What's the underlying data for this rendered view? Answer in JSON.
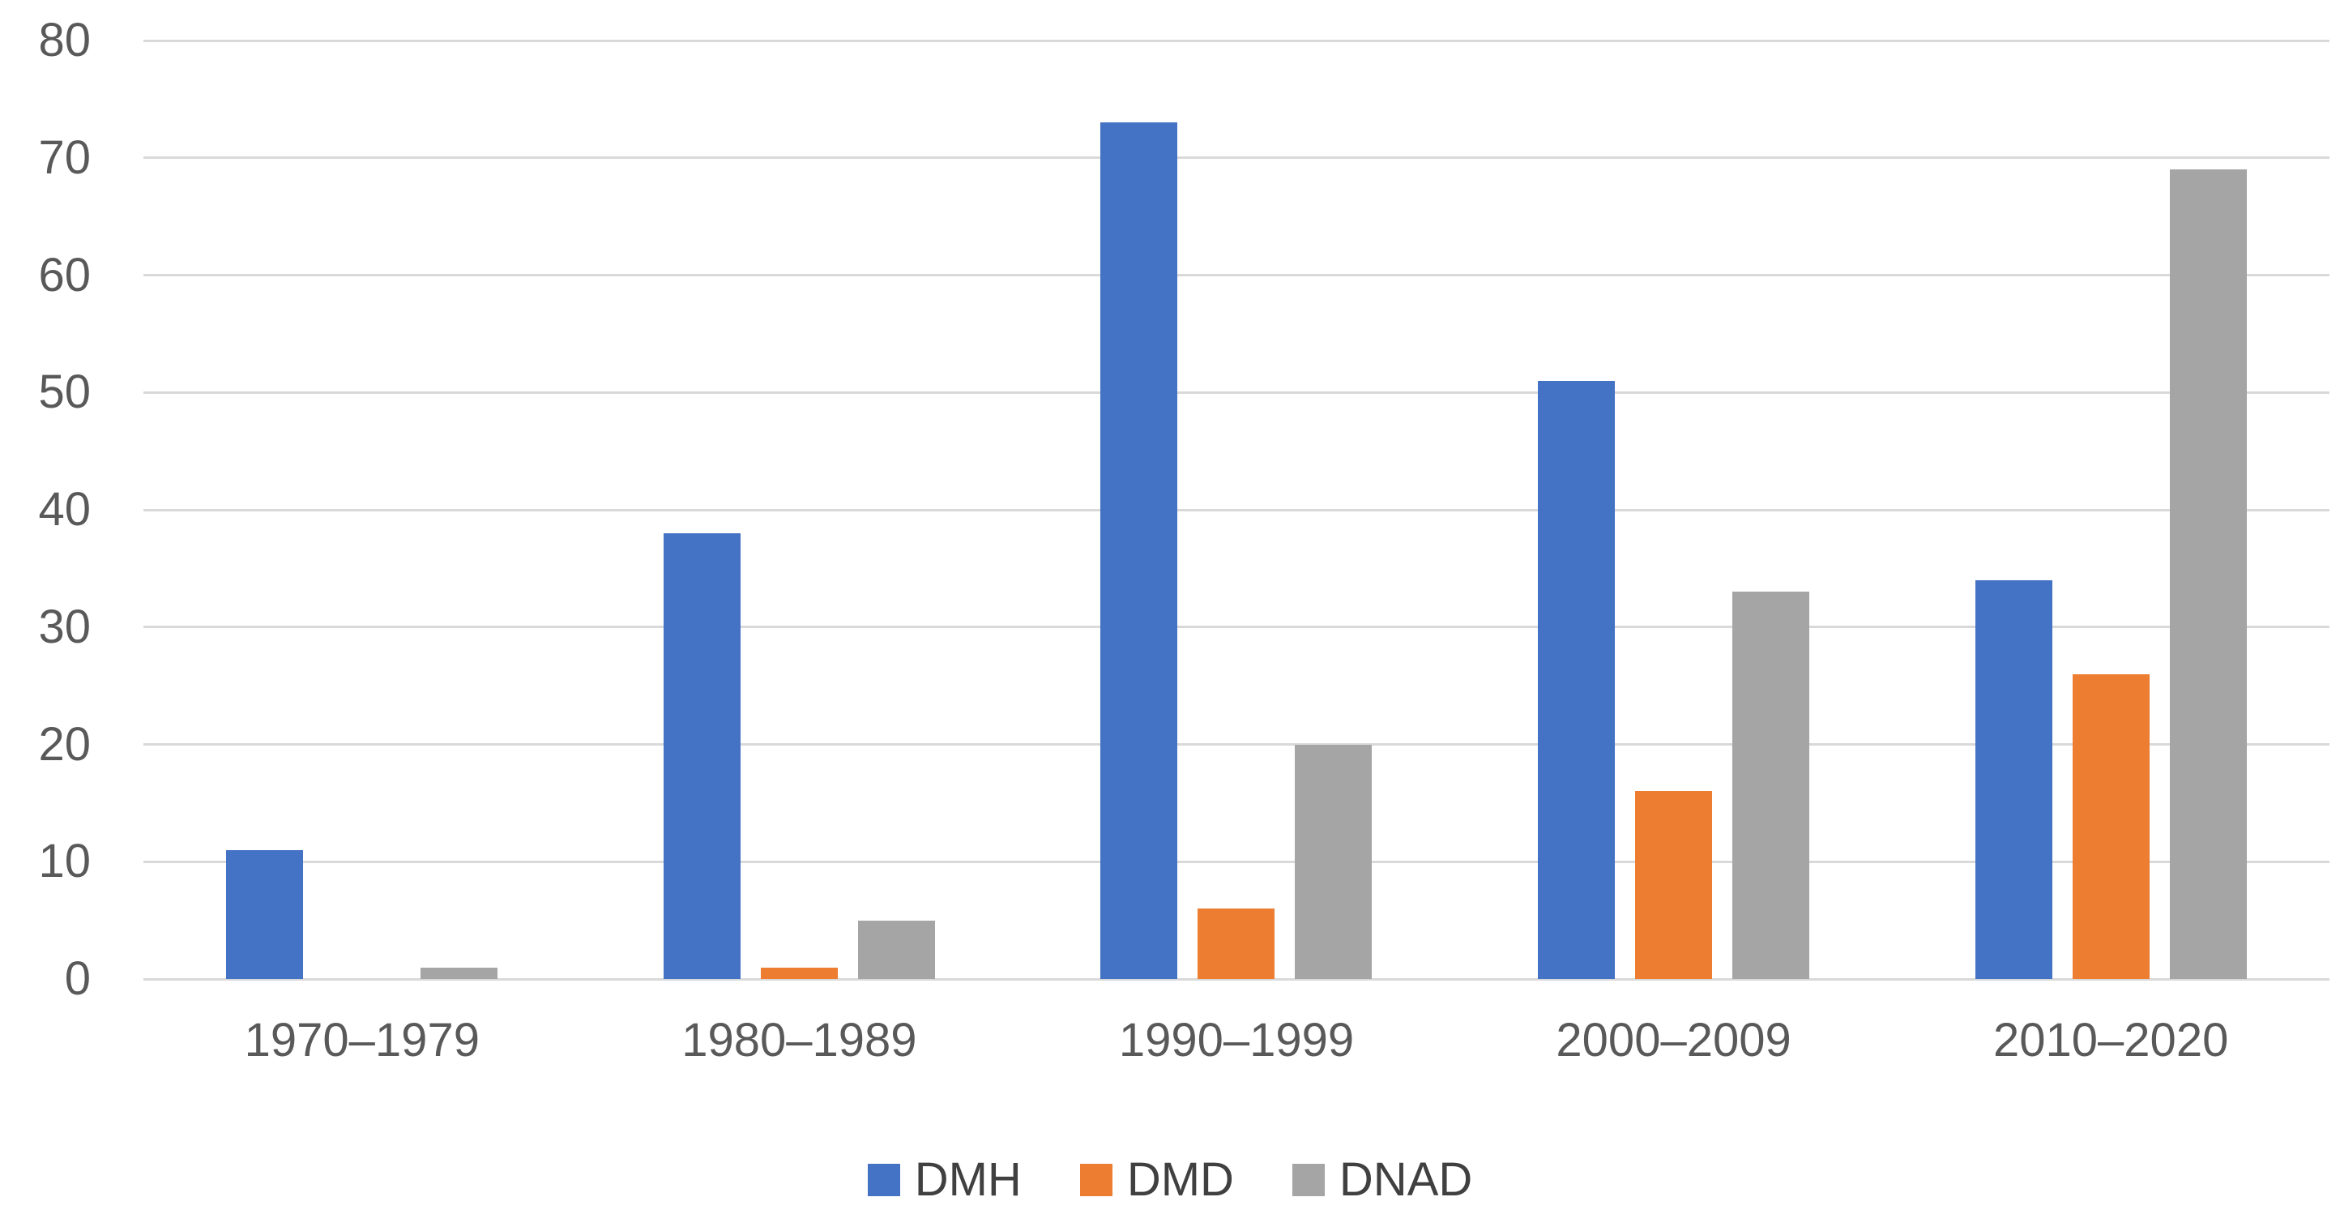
{
  "chart_data": {
    "type": "bar",
    "title": "",
    "categories": [
      "1970–1979",
      "1980–1989",
      "1990–1999",
      "2000–2009",
      "2010–2020"
    ],
    "series": [
      {
        "name": "DMH",
        "color": "#4472C4",
        "values": [
          11,
          38,
          73,
          51,
          34
        ]
      },
      {
        "name": "DMD",
        "color": "#ED7D31",
        "values": [
          0,
          1,
          6,
          16,
          26
        ]
      },
      {
        "name": "DNAD",
        "color": "#A5A5A5",
        "values": [
          1,
          5,
          20,
          33,
          69
        ]
      }
    ],
    "xlabel": "",
    "ylabel": "",
    "ylim": [
      0,
      80
    ],
    "yticks": [
      0,
      10,
      20,
      30,
      40,
      50,
      60,
      70,
      80
    ],
    "grid": true,
    "legend_position": "bottom-center",
    "colors": {
      "gridline": "#d9d9d9",
      "tick_text": "#595959",
      "legend_text": "#404040",
      "background": "#ffffff"
    }
  }
}
